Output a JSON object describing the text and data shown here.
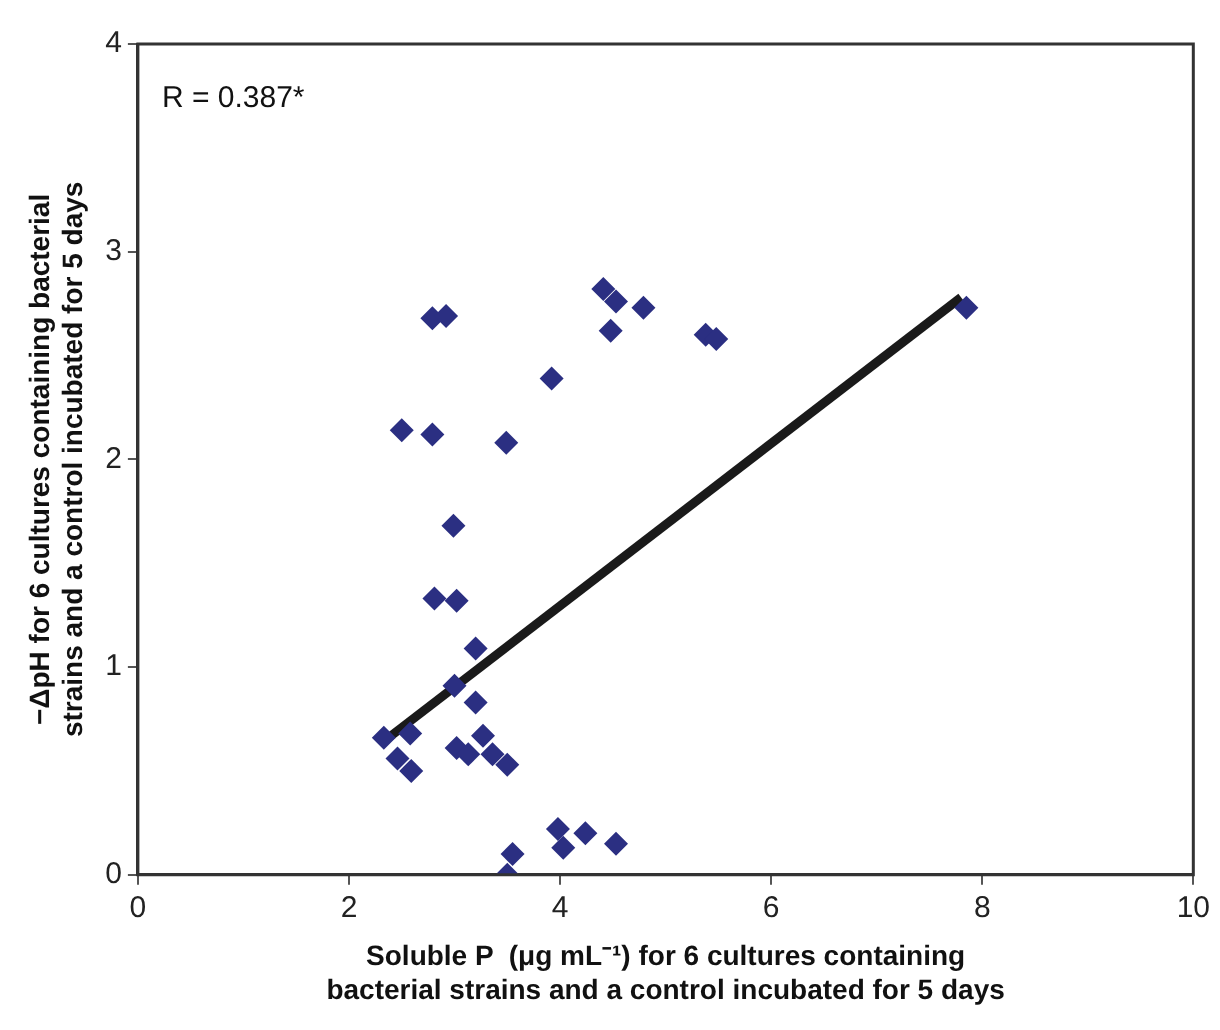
{
  "chart_data": {
    "type": "scatter",
    "xlabel": "Soluble P  (μg mL⁻¹) for 6 cultures containing bacterial strains and a control incubated for 5 days",
    "ylabel": "−ΔpH for 6 cultures containing bacterial strains and a control incubated for 5 days",
    "annotations": [
      "R = 0.387*"
    ],
    "xlim": [
      0,
      10
    ],
    "xticks": [
      0,
      2,
      4,
      6,
      8,
      10
    ],
    "ylim": [
      0,
      4
    ],
    "yticks": [
      0,
      1,
      2,
      3,
      4
    ],
    "grid": false,
    "legend": false,
    "marker": "diamond",
    "series": [
      {
        "type": "scatter",
        "color": "#2b2f82",
        "x": [
          4.41,
          4.53,
          4.79,
          4.48,
          5.38,
          5.48,
          2.79,
          2.92,
          3.92,
          2.5,
          2.79,
          3.49,
          2.99,
          2.81,
          3.02,
          3.2,
          3.0,
          3.2,
          2.33,
          2.58,
          2.46,
          2.59,
          3.02,
          3.13,
          3.27,
          3.36,
          3.5,
          3.98,
          4.03,
          4.24,
          4.53,
          3.55,
          3.5,
          7.85
        ],
        "values": [
          2.82,
          2.76,
          2.73,
          2.62,
          2.6,
          2.58,
          2.68,
          2.69,
          2.39,
          2.14,
          2.12,
          2.08,
          1.68,
          1.33,
          1.32,
          1.09,
          0.91,
          0.83,
          0.66,
          0.68,
          0.56,
          0.5,
          0.61,
          0.58,
          0.67,
          0.58,
          0.53,
          0.22,
          0.13,
          0.2,
          0.15,
          0.1,
          0,
          2.73
        ]
      },
      {
        "type": "line",
        "color": "#1a1a1a",
        "marker": "none",
        "line_style": "solid",
        "x": [
          2.35,
          7.8
        ],
        "values": [
          0.65,
          2.78
        ]
      }
    ]
  }
}
